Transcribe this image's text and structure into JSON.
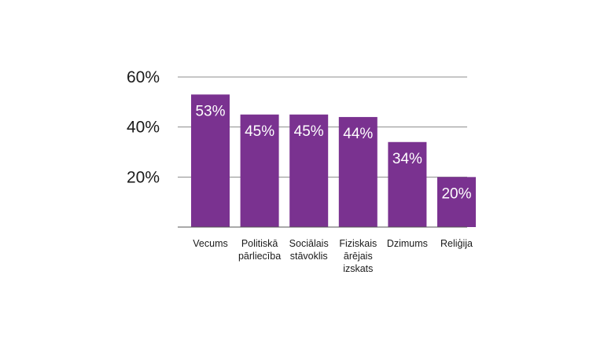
{
  "chart_data": {
    "type": "bar",
    "categories": [
      [
        "Vecums"
      ],
      [
        "Politiskā",
        "pārliecība"
      ],
      [
        "Sociālais",
        "stāvoklis"
      ],
      [
        "Fiziskais",
        "ārējais",
        "izskats"
      ],
      [
        "Dzimums"
      ],
      [
        "Reliģija"
      ]
    ],
    "values": [
      53,
      45,
      45,
      44,
      34,
      20
    ],
    "value_labels": [
      "53%",
      "45%",
      "45%",
      "44%",
      "34%",
      "20%"
    ],
    "y_ticks": [
      20,
      40,
      60
    ],
    "y_tick_labels": [
      "20%",
      "40%",
      "60%"
    ],
    "ylim": [
      0,
      60
    ],
    "grid": true,
    "title": "",
    "xlabel": "",
    "ylabel": "",
    "bar_color": "#7a3290"
  }
}
